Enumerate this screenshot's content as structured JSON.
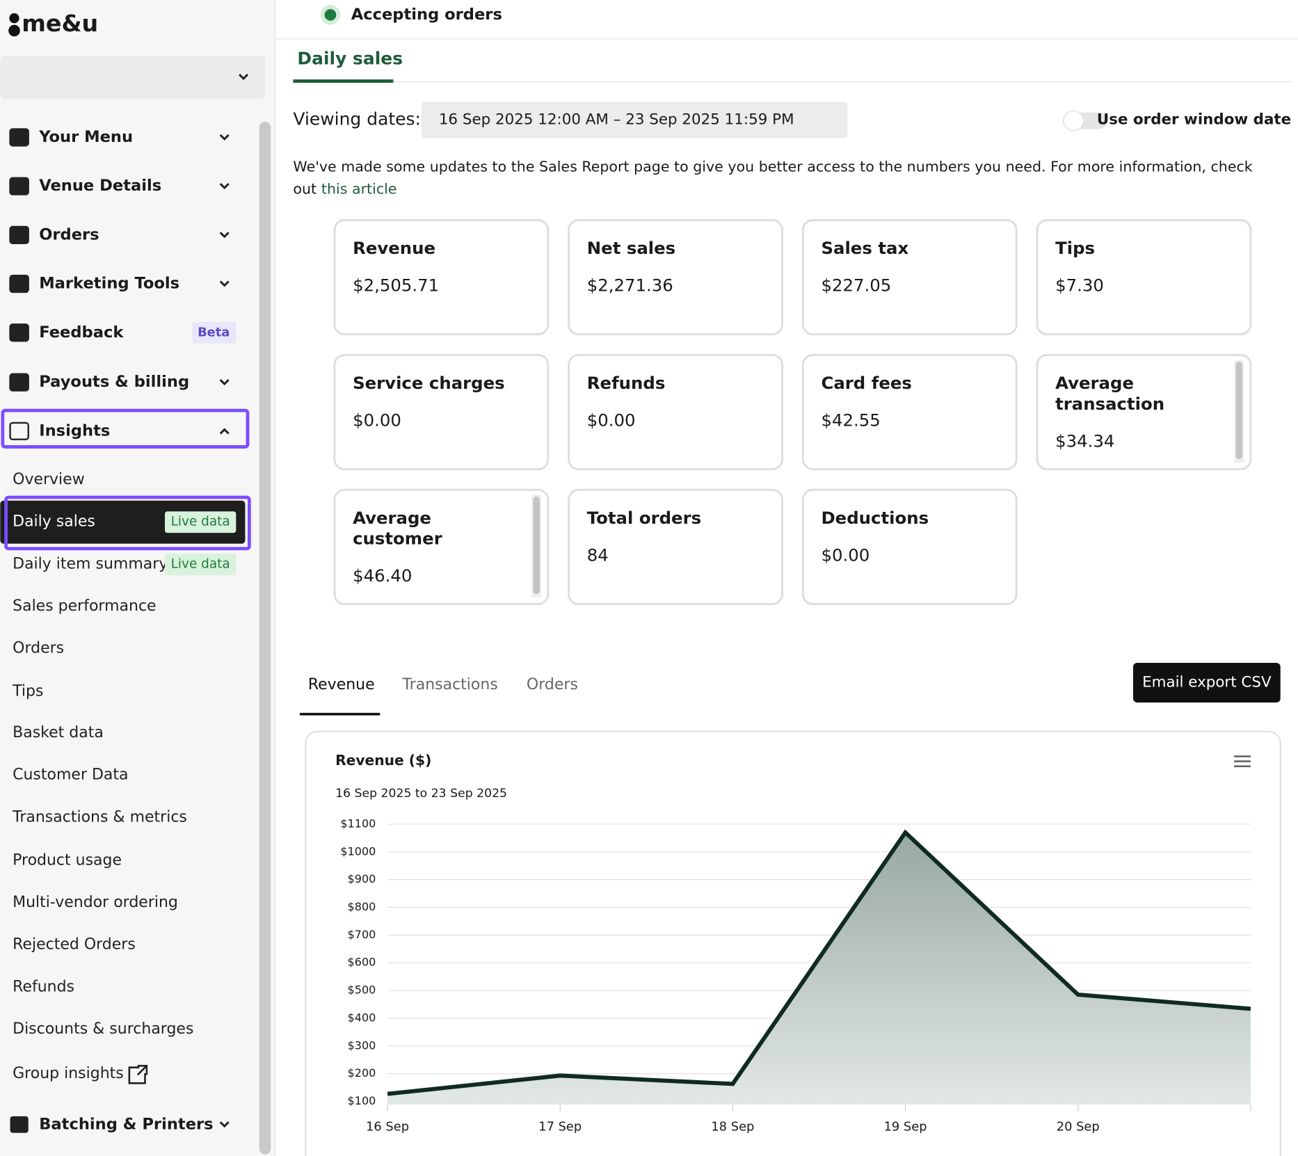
{
  "brand": "me&u",
  "status": "Accepting orders",
  "nav": [
    {
      "label": "Your Menu"
    },
    {
      "label": "Venue Details"
    },
    {
      "label": "Orders"
    },
    {
      "label": "Marketing Tools"
    },
    {
      "label": "Feedback",
      "badge": "Beta"
    },
    {
      "label": "Payouts & billing"
    },
    {
      "label": "Insights"
    }
  ],
  "insights_menu": [
    {
      "label": "Overview"
    },
    {
      "label": "Daily sales",
      "badge": "Live data"
    },
    {
      "label": "Daily item summary",
      "badge": "Live data"
    },
    {
      "label": "Sales performance"
    },
    {
      "label": "Orders"
    },
    {
      "label": "Tips"
    },
    {
      "label": "Basket data"
    },
    {
      "label": "Customer Data"
    },
    {
      "label": "Transactions & metrics"
    },
    {
      "label": "Product usage"
    },
    {
      "label": "Multi-vendor ordering"
    },
    {
      "label": "Rejected Orders"
    },
    {
      "label": "Refunds"
    },
    {
      "label": "Discounts & surcharges"
    },
    {
      "label": "Group insights"
    }
  ],
  "nav_bottom": "Batching & Printers",
  "page_tab": "Daily sales",
  "viewing_label": "Viewing dates:",
  "date_range": "16 Sep 2025 12:00 AM – 23 Sep 2025 11:59 PM",
  "toggle_label": "Use order window date",
  "notice": "We've made some updates to the Sales Report page to give you better access to the numbers you need. For more information, check",
  "notice_cont": "out",
  "notice_link": "this article",
  "metrics": [
    {
      "label": "Revenue",
      "value": "$2,505.71"
    },
    {
      "label": "Net sales",
      "value": "$2,271.36"
    },
    {
      "label": "Sales tax",
      "value": "$227.05"
    },
    {
      "label": "Tips",
      "value": "$7.30"
    },
    {
      "label": "Service charges",
      "value": "$0.00"
    },
    {
      "label": "Refunds",
      "value": "$0.00"
    },
    {
      "label": "Card fees",
      "value": "$42.55"
    },
    {
      "label": "Average transaction",
      "value": "$34.34"
    },
    {
      "label": "Average customer",
      "value": "$46.40"
    },
    {
      "label": "Total orders",
      "value": "84"
    },
    {
      "label": "Deductions",
      "value": "$0.00"
    }
  ],
  "chart_tabs": [
    "Revenue",
    "Transactions",
    "Orders"
  ],
  "export_button": "Email export CSV",
  "chart_data": {
    "type": "area",
    "title": "Revenue ($)",
    "subtitle": "16 Sep 2025 to 23 Sep 2025",
    "categories": [
      "16 Sep",
      "17 Sep",
      "18 Sep",
      "19 Sep",
      "20 Sep",
      null
    ],
    "values": [
      127,
      193,
      163,
      1070,
      485,
      434
    ],
    "color": "#0f2b24",
    "ylim": [
      88,
      1100
    ],
    "yticks": [
      {
        "value": 100,
        "label": "$100"
      },
      {
        "value": 200,
        "label": "$200"
      },
      {
        "value": 300,
        "label": "$300"
      },
      {
        "value": 400,
        "label": "$400"
      },
      {
        "value": 500,
        "label": "$500"
      },
      {
        "value": 600,
        "label": "$600"
      },
      {
        "value": 700,
        "label": "$700"
      },
      {
        "value": 800,
        "label": "$800"
      },
      {
        "value": 900,
        "label": "$900"
      },
      {
        "value": 1000,
        "label": "$1000"
      },
      {
        "value": 1100,
        "label": "$1100"
      }
    ],
    "grid": true
  }
}
